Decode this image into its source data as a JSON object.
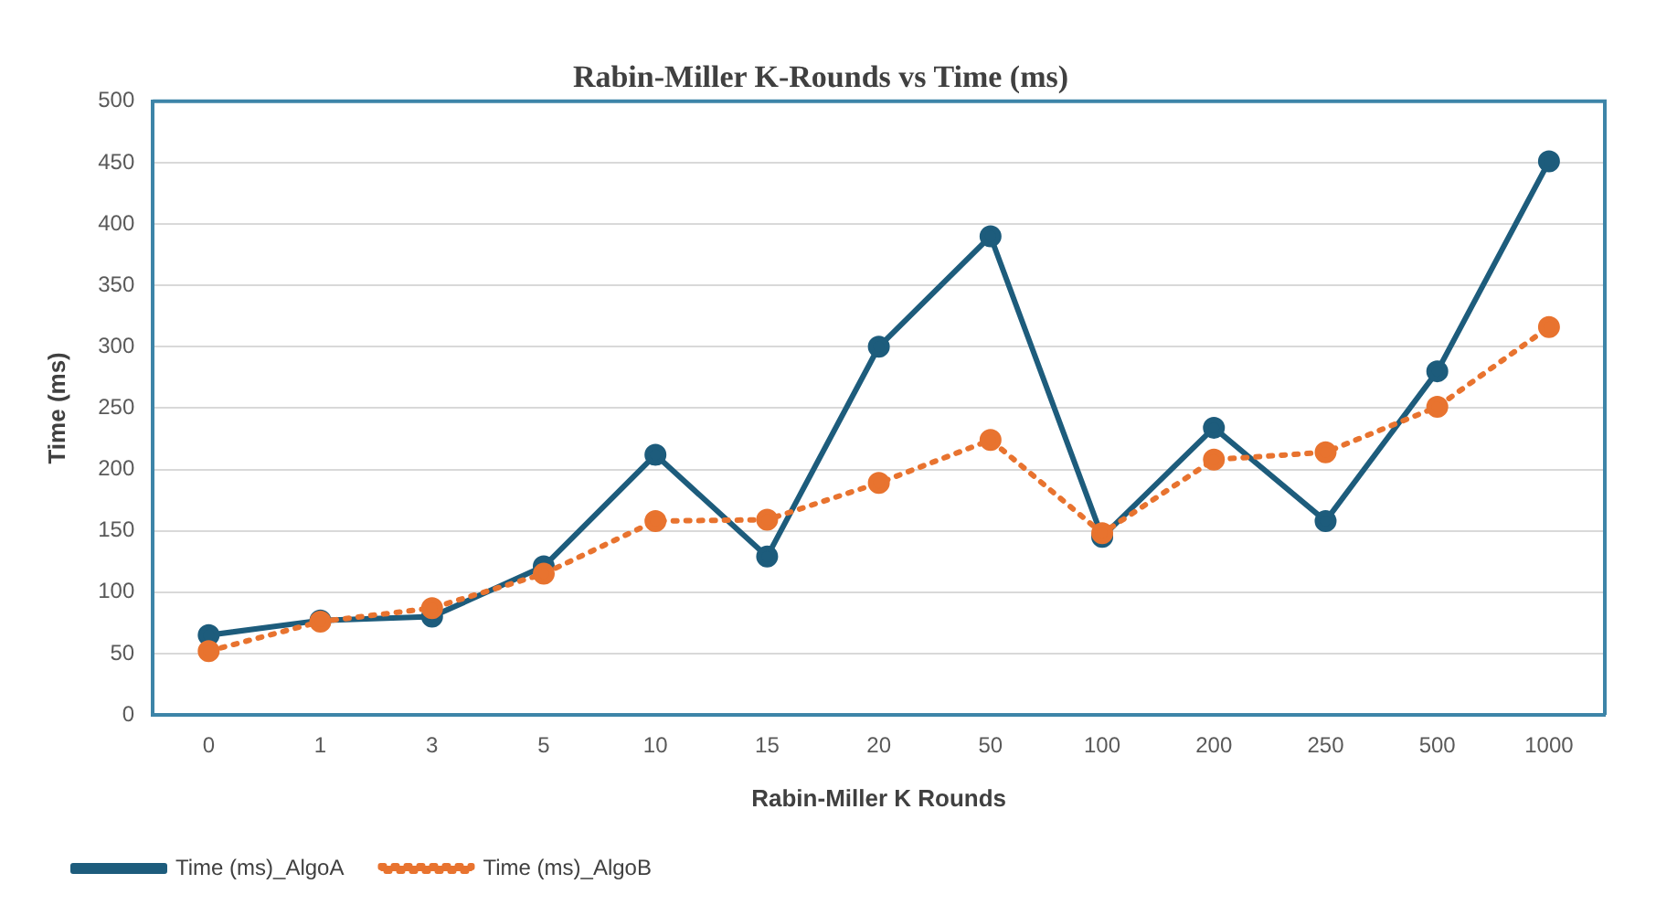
{
  "chart_data": {
    "type": "line",
    "title": "Rabin-Miller K-Rounds vs Time (ms)",
    "xlabel": "Rabin-Miller K Rounds",
    "ylabel": "Time (ms)",
    "categories": [
      "0",
      "1",
      "3",
      "5",
      "10",
      "15",
      "20",
      "50",
      "100",
      "200",
      "250",
      "500",
      "1000"
    ],
    "series": [
      {
        "name": "Time (ms)_AlgoA",
        "color": "#1d5c7c",
        "line_style": "solid",
        "values": [
          65,
          77,
          80,
          121,
          212,
          129,
          300,
          390,
          145,
          234,
          158,
          280,
          451
        ]
      },
      {
        "name": "Time (ms)_AlgoB",
        "color": "#e8732f",
        "line_style": "dotted",
        "values": [
          52,
          76,
          87,
          115,
          158,
          159,
          189,
          224,
          148,
          208,
          214,
          251,
          316
        ]
      }
    ],
    "ylim": [
      0,
      500
    ],
    "yticks": [
      0,
      50,
      100,
      150,
      200,
      250,
      300,
      350,
      400,
      450,
      500
    ],
    "grid": "y",
    "legend": "bottom left",
    "marker": "circle"
  }
}
